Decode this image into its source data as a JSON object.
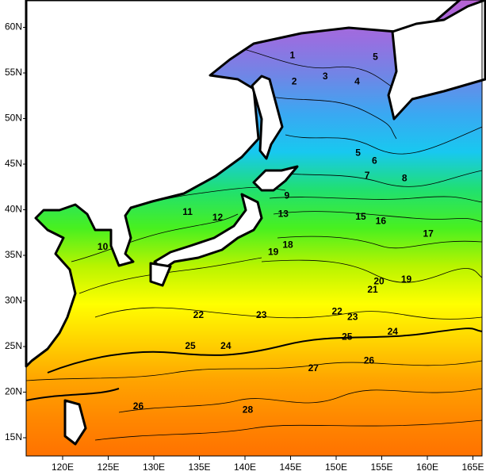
{
  "map": {
    "xlim": [
      116,
      166
    ],
    "ylim": [
      13,
      63
    ],
    "xticks": [
      {
        "value": 120,
        "label": "120E"
      },
      {
        "value": 125,
        "label": "125E"
      },
      {
        "value": 130,
        "label": "130E"
      },
      {
        "value": 135,
        "label": "135E"
      },
      {
        "value": 140,
        "label": "140E"
      },
      {
        "value": 145,
        "label": "145E"
      },
      {
        "value": 150,
        "label": "150E"
      },
      {
        "value": 155,
        "label": "155E"
      },
      {
        "value": 160,
        "label": "160E"
      },
      {
        "value": 165,
        "label": "165E"
      }
    ],
    "yticks": [
      {
        "value": 15,
        "label": "15N"
      },
      {
        "value": 20,
        "label": "20N"
      },
      {
        "value": 25,
        "label": "25N"
      },
      {
        "value": 30,
        "label": "30N"
      },
      {
        "value": 35,
        "label": "35N"
      },
      {
        "value": 40,
        "label": "40N"
      },
      {
        "value": 45,
        "label": "45N"
      },
      {
        "value": 50,
        "label": "50N"
      },
      {
        "value": 55,
        "label": "55N"
      },
      {
        "value": 60,
        "label": "60N"
      }
    ],
    "colors": [
      "#b862d4",
      "#9a6ee0",
      "#6f86e6",
      "#3aa8f2",
      "#18c8f0",
      "#20e070",
      "#48f020",
      "#b8f400",
      "#ffff00",
      "#ffd200",
      "#ffa400",
      "#ff8800",
      "#ff7200"
    ],
    "contour_labels": [
      {
        "value": 1,
        "lon": 145.2,
        "lat": 56.9
      },
      {
        "value": 2,
        "lon": 145.4,
        "lat": 54.0
      },
      {
        "value": 3,
        "lon": 148.8,
        "lat": 54.6
      },
      {
        "value": 4,
        "lon": 152.3,
        "lat": 54.0
      },
      {
        "value": 5,
        "lon": 154.3,
        "lat": 56.7
      },
      {
        "value": 5,
        "lon": 152.4,
        "lat": 46.2
      },
      {
        "value": 6,
        "lon": 154.2,
        "lat": 45.3
      },
      {
        "value": 7,
        "lon": 153.4,
        "lat": 43.7
      },
      {
        "value": 8,
        "lon": 157.5,
        "lat": 43.4
      },
      {
        "value": 9,
        "lon": 144.6,
        "lat": 41.5
      },
      {
        "value": 10,
        "lon": 124.4,
        "lat": 35.9
      },
      {
        "value": 11,
        "lon": 133.7,
        "lat": 39.7
      },
      {
        "value": 12,
        "lon": 137.0,
        "lat": 39.1
      },
      {
        "value": 13,
        "lon": 144.2,
        "lat": 39.5
      },
      {
        "value": 15,
        "lon": 152.7,
        "lat": 39.2
      },
      {
        "value": 16,
        "lon": 154.9,
        "lat": 38.7
      },
      {
        "value": 17,
        "lon": 160.1,
        "lat": 37.3
      },
      {
        "value": 18,
        "lon": 144.7,
        "lat": 36.1
      },
      {
        "value": 19,
        "lon": 143.1,
        "lat": 35.3
      },
      {
        "value": 20,
        "lon": 154.7,
        "lat": 32.1
      },
      {
        "value": 21,
        "lon": 154.0,
        "lat": 31.2
      },
      {
        "value": 19,
        "lon": 157.7,
        "lat": 32.3
      },
      {
        "value": 22,
        "lon": 134.9,
        "lat": 28.4
      },
      {
        "value": 23,
        "lon": 141.8,
        "lat": 28.4
      },
      {
        "value": 22,
        "lon": 150.1,
        "lat": 28.8
      },
      {
        "value": 23,
        "lon": 151.8,
        "lat": 28.2
      },
      {
        "value": 24,
        "lon": 156.2,
        "lat": 26.6
      },
      {
        "value": 25,
        "lon": 151.2,
        "lat": 26.0
      },
      {
        "value": 24,
        "lon": 137.9,
        "lat": 25.0
      },
      {
        "value": 25,
        "lon": 134.0,
        "lat": 25.0
      },
      {
        "value": 26,
        "lon": 153.6,
        "lat": 23.4
      },
      {
        "value": 27,
        "lon": 147.5,
        "lat": 22.6
      },
      {
        "value": 26,
        "lon": 128.3,
        "lat": 18.4
      },
      {
        "value": 28,
        "lon": 140.3,
        "lat": 18.0
      }
    ]
  }
}
